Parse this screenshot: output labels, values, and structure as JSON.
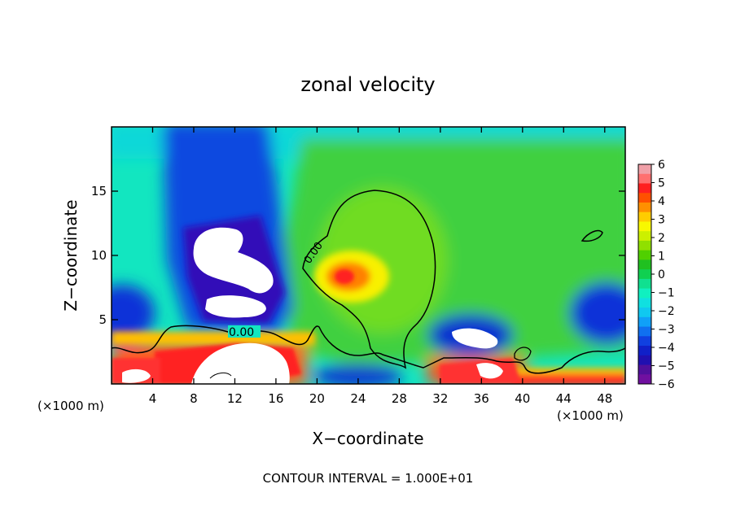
{
  "chart_data": {
    "type": "heatmap",
    "title": "zonal velocity",
    "xlabel": "X−coordinate",
    "ylabel": "Z−coordinate",
    "x_unit_left": "(×1000 m)",
    "x_unit_right": "(×1000 m)",
    "xlim": [
      0,
      50
    ],
    "ylim": [
      0,
      20
    ],
    "x_ticks": [
      4,
      8,
      12,
      16,
      20,
      24,
      28,
      32,
      36,
      40,
      44,
      48
    ],
    "y_ticks": [
      5,
      10,
      15
    ],
    "contour_label_1": "0.00",
    "contour_label_2": "0.00",
    "footer": "CONTOUR INTERVAL = 1.000E+01",
    "colorbar": {
      "ticks": [
        "6",
        "5",
        "4",
        "3",
        "2",
        "1",
        "0",
        "−1",
        "−2",
        "−3",
        "−4",
        "−5",
        "−6"
      ],
      "colors": [
        "#f0a0a8",
        "#ff7070",
        "#ff2020",
        "#ff5000",
        "#ff9000",
        "#ffcc00",
        "#f8f800",
        "#ccf000",
        "#90e000",
        "#50d000",
        "#20c020",
        "#10d050",
        "#10e090",
        "#10f0c0",
        "#10e0e0",
        "#10c8f0",
        "#10a0f8",
        "#1070f0",
        "#1040e0",
        "#1020c8",
        "#2010b0",
        "#50109c",
        "#7010a0"
      ]
    }
  }
}
